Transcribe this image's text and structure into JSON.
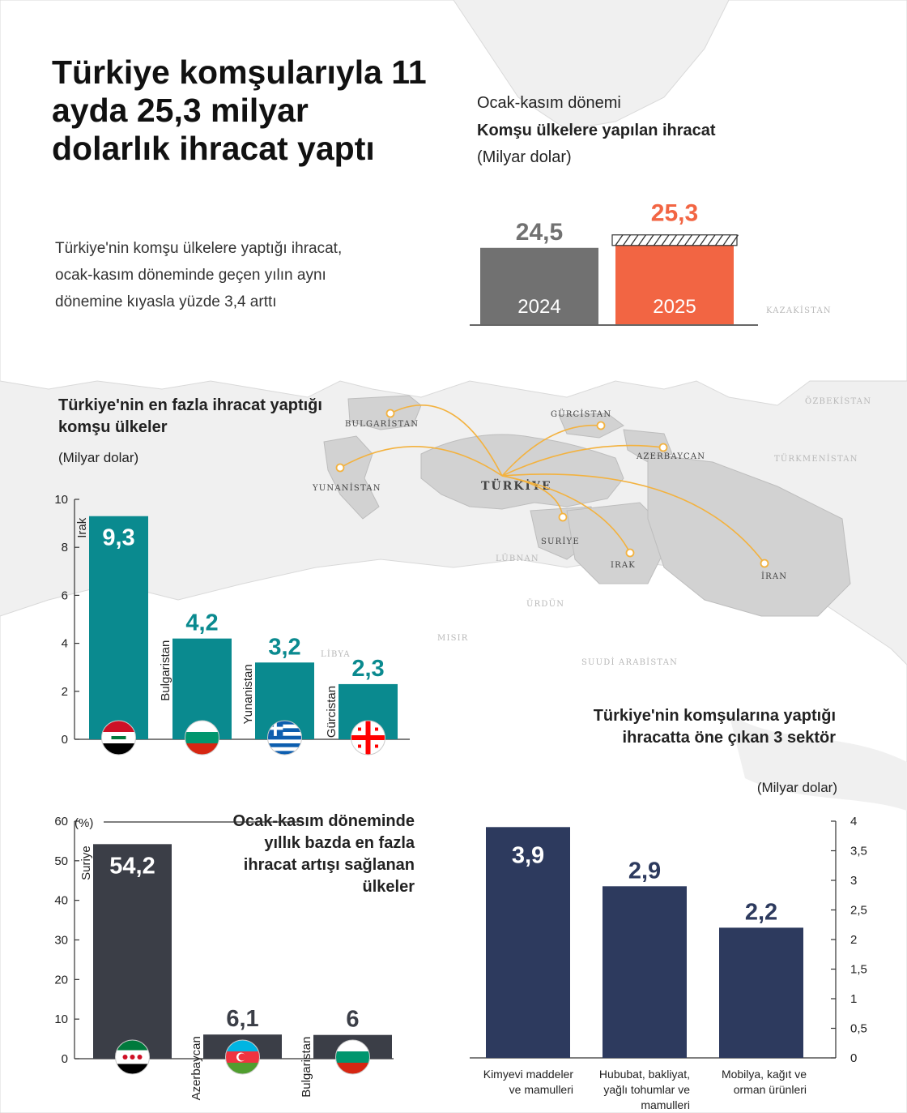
{
  "title": "Türkiye komşularıyla 11 ayda 25,3 milyar dolarlık ihracat yaptı",
  "subtitle": "Türkiye'nin komşu ülkelere yaptığı ihracat, ocak-kasım döneminde geçen yılın aynı dönemine kıyasla yüzde 3,4 arttı",
  "colors": {
    "gray": "#717171",
    "orange": "#f26543",
    "teal": "#0a8a8f",
    "dark": "#3b3e47",
    "navy": "#2d3a5e",
    "route": "#f3b23f"
  },
  "map": {
    "center_label": "TÜRKİYE",
    "destinations": [
      "BULGARİSTAN",
      "YUNANİSTAN",
      "GÜRCİSTAN",
      "AZERBAYCAN",
      "SURİYE",
      "IRAK",
      "İRAN"
    ],
    "background_labels": [
      "KAZAKİSTAN",
      "ÖZBEKİSTAN",
      "TÜRKMENİSTAN",
      "LÜBNAN",
      "ÜRDÜN",
      "MISIR",
      "LİBYA",
      "SUUDİ ARABİSTAN"
    ]
  },
  "chart_data": [
    {
      "type": "bar",
      "title": "Komşu ülkelere yapılan ihracat",
      "period_label": "Ocak-kasım dönemi",
      "unit_label": "(Milyar dolar)",
      "categories": [
        "2024",
        "2025"
      ],
      "values": [
        24.5,
        25.3
      ],
      "value_labels": [
        "24,5",
        "25,3"
      ],
      "colors": [
        "#717171",
        "#f26543"
      ]
    },
    {
      "type": "bar",
      "title": "Türkiye'nin en fazla ihracat yaptığı komşu ülkeler",
      "unit_label": "(Milyar dolar)",
      "categories": [
        "Irak",
        "Bulgaristan",
        "Yunanistan",
        "Gürcistan"
      ],
      "values": [
        9.3,
        4.2,
        3.2,
        2.3
      ],
      "value_labels": [
        "9,3",
        "4,2",
        "3,2",
        "2,3"
      ],
      "ylim": [
        0,
        10
      ],
      "yticks": [
        "0",
        "2",
        "4",
        "6",
        "8",
        "10"
      ],
      "flags": [
        "iraq-flag-icon",
        "bulgaria-flag-icon",
        "greece-flag-icon",
        "georgia-flag-icon"
      ]
    },
    {
      "type": "bar",
      "title": "Ocak-kasım döneminde yıllık bazda en fazla ihracat artışı sağlanan ülkeler",
      "unit_label": "(%)",
      "categories": [
        "Suriye",
        "Azerbaycan",
        "Bulgaristan"
      ],
      "values": [
        54.2,
        6.1,
        6
      ],
      "value_labels": [
        "54,2",
        "6,1",
        "6"
      ],
      "ylim": [
        0,
        60
      ],
      "yticks": [
        "0",
        "10",
        "20",
        "30",
        "40",
        "50",
        "60"
      ],
      "flags": [
        "syria-flag-icon",
        "azerbaijan-flag-icon",
        "bulgaria-flag-icon"
      ]
    },
    {
      "type": "bar",
      "title": "Türkiye'nin komşularına yaptığı ihracatta öne çıkan 3 sektör",
      "unit_label": "(Milyar dolar)",
      "categories": [
        "Kimyevi maddeler ve mamulleri",
        "Hububat, bakliyat, yağlı tohumlar ve mamulleri",
        "Mobilya, kağıt ve orman ürünleri"
      ],
      "category_lines": [
        [
          "Kimyevi maddeler",
          "ve mamulleri"
        ],
        [
          "Hububat, bakliyat,",
          "yağlı tohumlar ve",
          "mamulleri"
        ],
        [
          "Mobilya, kağıt ve",
          "orman ürünleri"
        ]
      ],
      "values": [
        3.9,
        2.9,
        2.2
      ],
      "value_labels": [
        "3,9",
        "2,9",
        "2,2"
      ],
      "ylim": [
        0,
        4
      ],
      "yticks": [
        "0",
        "0,5",
        "1",
        "1,5",
        "2",
        "2,5",
        "3",
        "3,5",
        "4"
      ]
    }
  ]
}
